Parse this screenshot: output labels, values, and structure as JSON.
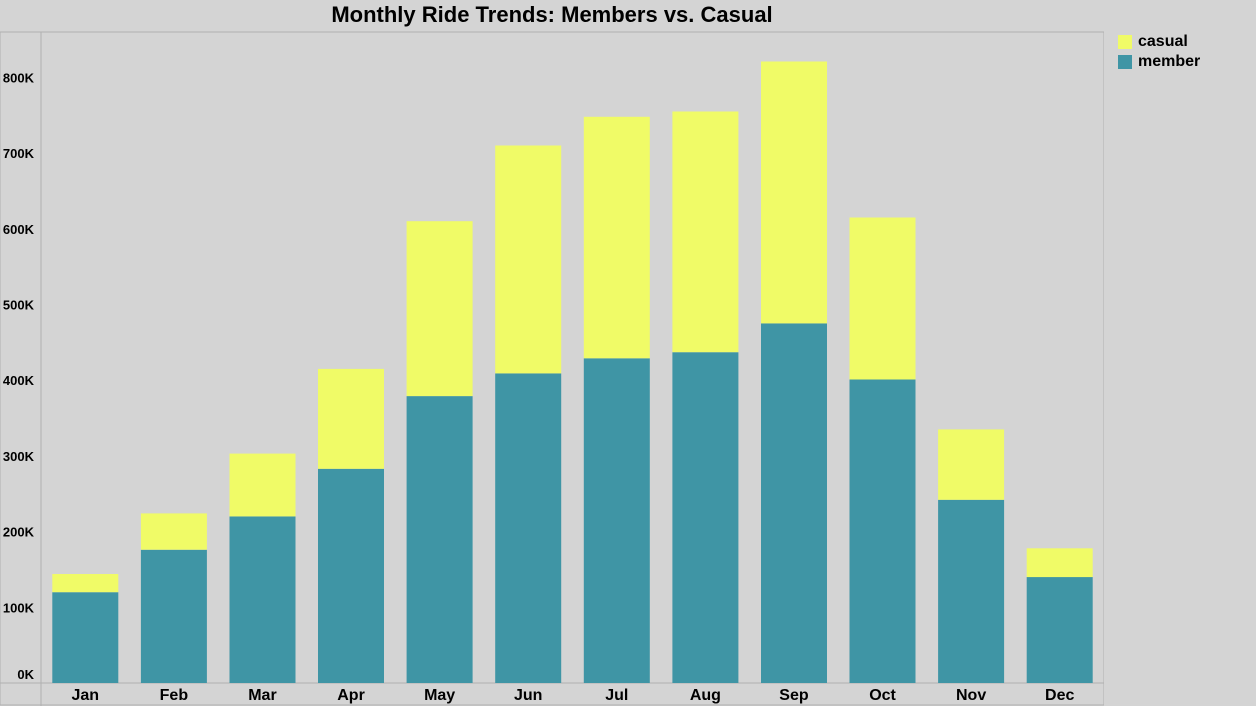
{
  "chart_data": {
    "type": "bar",
    "stacked": true,
    "title": "Monthly Ride Trends: Members vs. Casual",
    "xlabel": "",
    "ylabel": "",
    "categories": [
      "Jan",
      "Feb",
      "Mar",
      "Apr",
      "May",
      "Jun",
      "Jul",
      "Aug",
      "Sep",
      "Oct",
      "Nov",
      "Dec"
    ],
    "series": [
      {
        "name": "member",
        "color": "#3f95a5",
        "values": [
          120000,
          176000,
          220000,
          283000,
          379000,
          409000,
          429000,
          437000,
          475000,
          401000,
          242000,
          140000
        ]
      },
      {
        "name": "casual",
        "color": "#f0fb67",
        "values": [
          24000,
          48000,
          83000,
          132000,
          231000,
          301000,
          319000,
          318000,
          346000,
          214000,
          93000,
          38000
        ]
      }
    ],
    "ylim": [
      0,
      860000
    ],
    "yticks": [
      0,
      100000,
      200000,
      300000,
      400000,
      500000,
      600000,
      700000,
      800000
    ],
    "ytick_labels": [
      "0K",
      "100K",
      "200K",
      "300K",
      "400K",
      "500K",
      "600K",
      "700K",
      "800K"
    ],
    "grid": false,
    "legend": {
      "position": "top-right",
      "entries": [
        "casual",
        "member"
      ]
    }
  }
}
